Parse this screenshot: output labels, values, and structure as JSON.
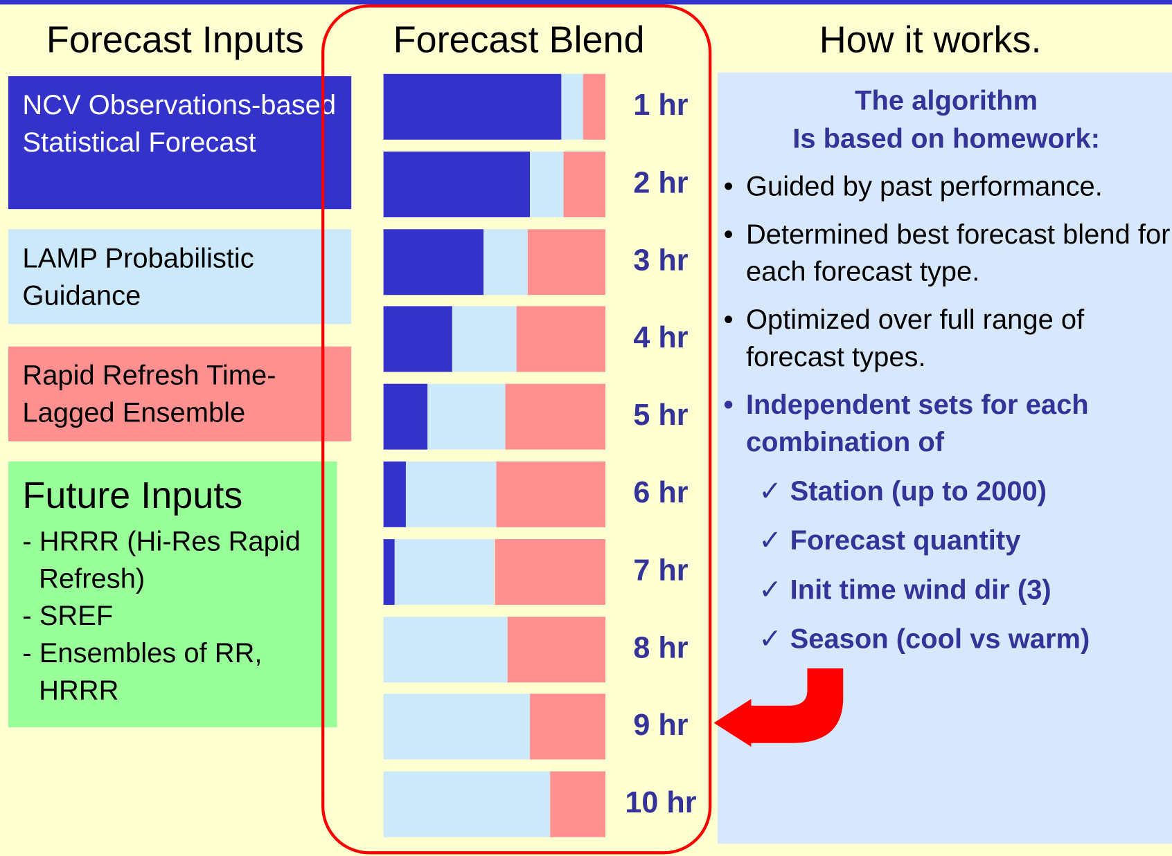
{
  "headers": [
    "Forecast Inputs",
    "How it works."
  ],
  "chart_data": {
    "type": "bar",
    "stacked": true,
    "orientation": "horizontal",
    "title": "Forecast Blend",
    "categories": [
      "1 hr",
      "2 hr",
      "3 hr",
      "4 hr",
      "5 hr",
      "6 hr",
      "7 hr",
      "8 hr",
      "9 hr",
      "10 hr"
    ],
    "xlim": [
      0,
      100
    ],
    "series": [
      {
        "name": "NCV Observations-based Statistical Forecast",
        "color": "#3333cc",
        "text_color": "#ffffff",
        "values": [
          80,
          66,
          45,
          31,
          20,
          10,
          5,
          0,
          0,
          0
        ]
      },
      {
        "name": "LAMP Probabilistic Guidance",
        "color": "#cce8fb",
        "text_color": "#000000",
        "values": [
          10,
          15,
          20,
          29,
          35,
          41,
          45,
          56,
          66,
          75
        ]
      },
      {
        "name": "Rapid Refresh Time-Lagged Ensemble",
        "color": "#ff9090",
        "text_color": "#000000",
        "values": [
          10,
          19,
          35,
          40,
          45,
          49,
          50,
          44,
          34,
          25
        ]
      }
    ]
  },
  "future_inputs": {
    "title": "Future Inputs",
    "items": [
      "- HRRR (Hi-Res Rapid Refresh)",
      "- SREF",
      "- Ensembles of RR, HRRR"
    ]
  },
  "how_it_works": {
    "heading": [
      "The algorithm",
      "Is based on homework:"
    ],
    "bullets": [
      "Guided by past performance.",
      "Determined best forecast blend for each forecast type.",
      "Optimized over full range of forecast types."
    ],
    "bold_bullet": "Independent sets for each combination of",
    "checks": [
      "Station (up to 2000)",
      "Forecast quantity",
      "Init time wind dir (3)",
      "Season (cool vs warm)"
    ]
  }
}
